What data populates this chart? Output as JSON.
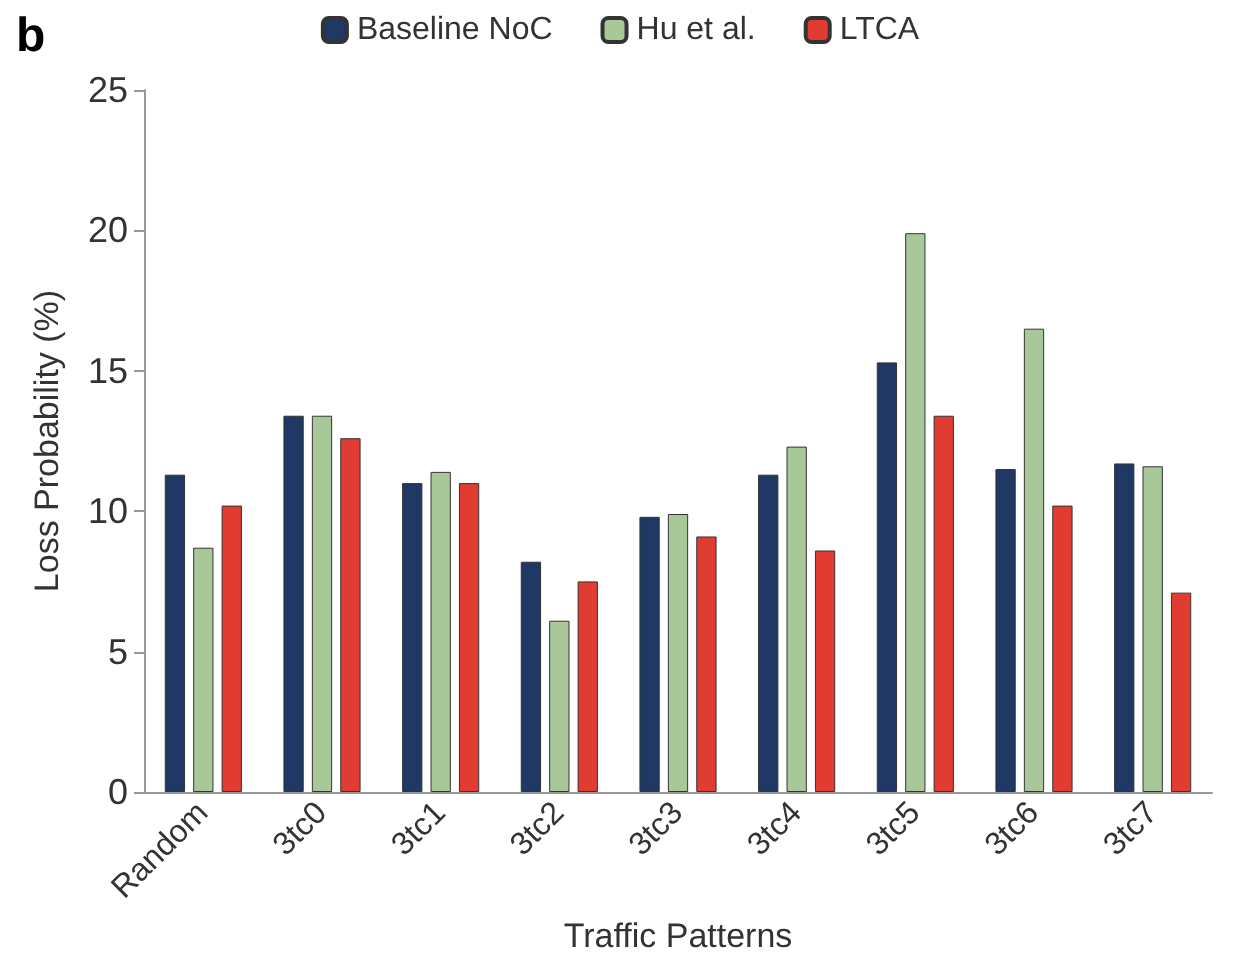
{
  "chart_data": {
    "type": "bar",
    "xlabel": "Traffic Patterns",
    "ylabel": "Loss Probability (%)",
    "annotations": [
      "b"
    ],
    "categories": [
      "Random",
      "3tc0",
      "3tc1",
      "3tc2",
      "3tc3",
      "3tc4",
      "3tc5",
      "3tc6",
      "3tc7"
    ],
    "series": [
      {
        "name": "Baseline NoC",
        "color": "#1f3864",
        "values": [
          11.3,
          13.4,
          11.0,
          8.2,
          9.8,
          11.3,
          15.3,
          11.5,
          11.7
        ]
      },
      {
        "name": "Hu et al.",
        "color": "#a9c89a",
        "values": [
          8.7,
          13.4,
          11.4,
          6.1,
          9.9,
          12.3,
          19.9,
          16.5,
          11.6
        ]
      },
      {
        "name": "LTCA",
        "color": "#e03c31",
        "values": [
          10.2,
          12.6,
          11.0,
          7.5,
          9.1,
          8.6,
          13.4,
          10.2,
          7.1
        ]
      }
    ],
    "ylim": [
      0,
      25
    ],
    "yticks": [
      0,
      5,
      10,
      15,
      20,
      25
    ],
    "grid": false,
    "legend": "top"
  }
}
